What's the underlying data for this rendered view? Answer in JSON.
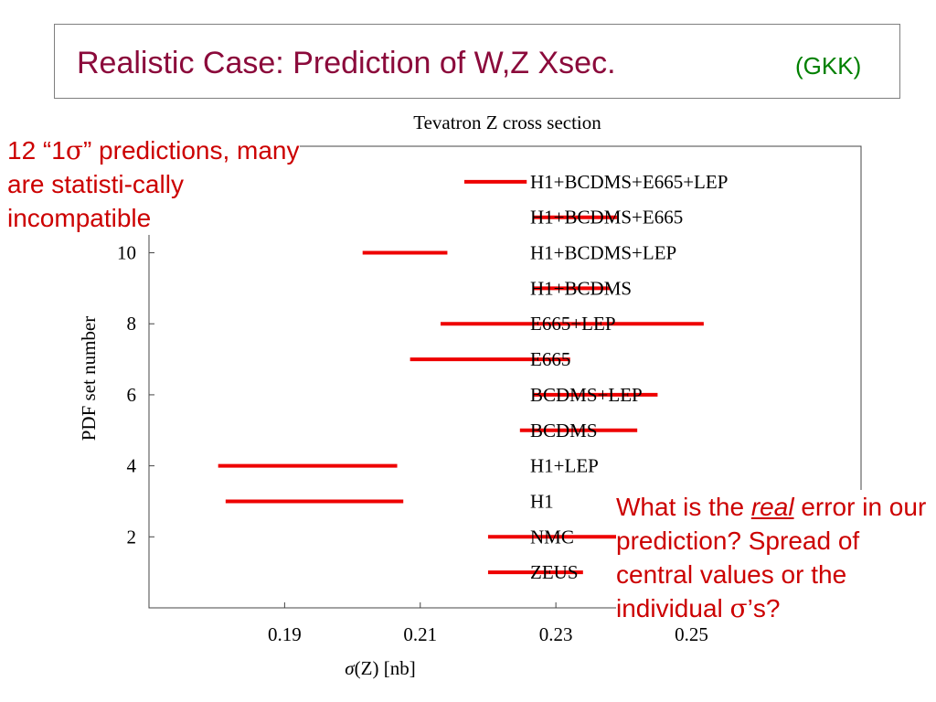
{
  "slide": {
    "title": "Realistic Case: Prediction of W,Z Xsec.",
    "title_tag": "(GKK)",
    "colors": {
      "title": "#8b0a3b",
      "tag": "#008000",
      "note": "#cc0000",
      "bars": "#ee0000"
    }
  },
  "note_left": {
    "prefix": "12 “1",
    "sigma": "σ",
    "suffix": "” predictions, many are statisti-cally incompatible"
  },
  "note_right": {
    "part1": "What is the ",
    "emph": "real",
    "part2": " error in our prediction? Spread of central values or the individual ",
    "sigma": "σ",
    "part3": "’s?"
  },
  "chart_data": {
    "type": "interval",
    "title": "Tevatron Z cross section",
    "xlabel_symbol": "σ",
    "xlabel_rest": "(Z) [nb]",
    "ylabel": "PDF set number",
    "xlim": [
      0.17,
      0.275
    ],
    "ylim": [
      0,
      13
    ],
    "x_ticks": [
      0.19,
      0.21,
      0.23,
      0.25
    ],
    "x_tick_labels": [
      "0.19",
      "0.21",
      "0.23",
      "0.25"
    ],
    "y_ticks": [
      2,
      4,
      6,
      8,
      10
    ],
    "y_tick_labels": [
      "2",
      "4",
      "6",
      "8",
      "10"
    ],
    "intervals": [
      {
        "y": 1,
        "label": "ZEUS",
        "low": 0.22,
        "high": 0.234
      },
      {
        "y": 2,
        "label": "NMC",
        "low": 0.22,
        "high": 0.239
      },
      {
        "y": 3,
        "label": "H1",
        "low": 0.1813,
        "high": 0.2075
      },
      {
        "y": 4,
        "label": "H1+LEP",
        "low": 0.1802,
        "high": 0.2066
      },
      {
        "y": 5,
        "label": "BCDMS",
        "low": 0.2247,
        "high": 0.242
      },
      {
        "y": 6,
        "label": "BCDMS+LEP",
        "low": 0.2266,
        "high": 0.245
      },
      {
        "y": 7,
        "label": "E665",
        "low": 0.2085,
        "high": 0.2321
      },
      {
        "y": 8,
        "label": "E665+LEP",
        "low": 0.213,
        "high": 0.2518
      },
      {
        "y": 9,
        "label": "H1+BCDMS",
        "low": 0.2266,
        "high": 0.238
      },
      {
        "y": 10,
        "label": "H1+BCDMS+LEP",
        "low": 0.2015,
        "high": 0.214
      },
      {
        "y": 11,
        "label": "H1+BCDMS+E665",
        "low": 0.2266,
        "high": 0.239
      },
      {
        "y": 12,
        "label": "H1+BCDMS+E665+LEP",
        "low": 0.2165,
        "high": 0.2257
      }
    ]
  }
}
